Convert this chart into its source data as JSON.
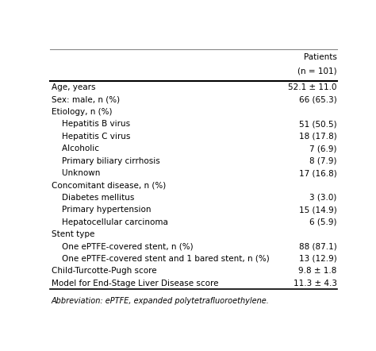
{
  "col_header_line1": "Patients",
  "col_header_line2": "(n = 101)",
  "rows": [
    {
      "label": "Age, years",
      "value": "52.1 ± 11.0",
      "indent": 0
    },
    {
      "label": "Sex: male, n (%)",
      "value": "66 (65.3)",
      "indent": 0
    },
    {
      "label": "Etiology, n (%)",
      "value": "",
      "indent": 0
    },
    {
      "label": "    Hepatitis B virus",
      "value": "51 (50.5)",
      "indent": 1
    },
    {
      "label": "    Hepatitis C virus",
      "value": "18 (17.8)",
      "indent": 1
    },
    {
      "label": "    Alcoholic",
      "value": "7 (6.9)",
      "indent": 1
    },
    {
      "label": "    Primary biliary cirrhosis",
      "value": "8 (7.9)",
      "indent": 1
    },
    {
      "label": "    Unknown",
      "value": "17 (16.8)",
      "indent": 1
    },
    {
      "label": "Concomitant disease, n (%)",
      "value": "",
      "indent": 0
    },
    {
      "label": "    Diabetes mellitus",
      "value": "3 (3.0)",
      "indent": 1
    },
    {
      "label": "    Primary hypertension",
      "value": "15 (14.9)",
      "indent": 1
    },
    {
      "label": "    Hepatocellular carcinoma",
      "value": "6 (5.9)",
      "indent": 1
    },
    {
      "label": "Stent type",
      "value": "",
      "indent": 0
    },
    {
      "label": "    One ePTFE-covered stent, n (%)",
      "value": "88 (87.1)",
      "indent": 1
    },
    {
      "label": "    One ePTFE-covered stent and 1 bared stent, n (%)",
      "value": "13 (12.9)",
      "indent": 1
    },
    {
      "label": "Child-Turcotte-Pugh score",
      "value": "9.8 ± 1.8",
      "indent": 0
    },
    {
      "label": "Model for End-Stage Liver Disease score",
      "value": "11.3 ± 4.3",
      "indent": 0
    }
  ],
  "footnote": "Abbreviation: ePTFE, expanded polytetrafluoroethylene.",
  "bg_color": "#ffffff",
  "text_color": "#000000",
  "font_size": 7.5,
  "line_color": "#000000"
}
